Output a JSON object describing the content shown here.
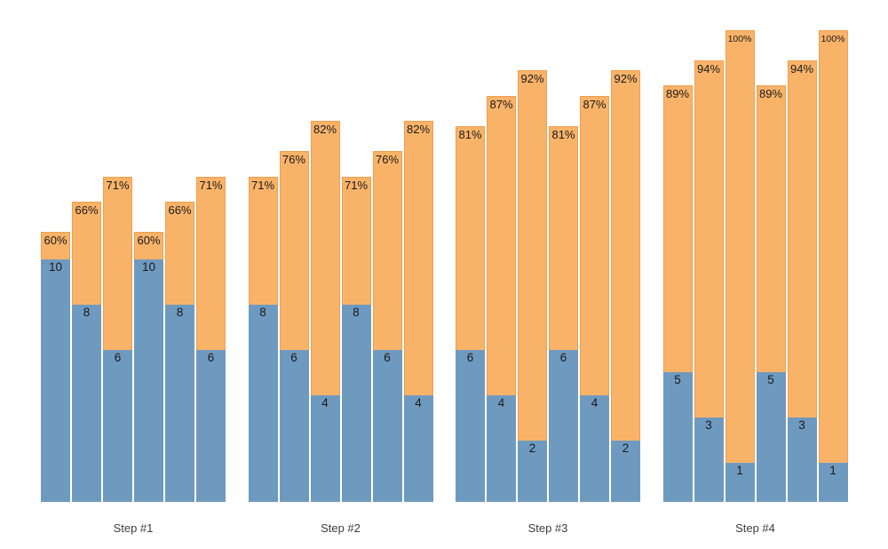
{
  "chart_data": {
    "type": "bar",
    "subtype": "stacked",
    "title": "",
    "xlabel": "",
    "ylabel": "",
    "grid": false,
    "legend": null,
    "axes_visible": false,
    "x_categories": [
      "Step #1",
      "Step #2",
      "Step #3",
      "Step #4"
    ],
    "colors": {
      "upper_segment": "#f9b369",
      "upper_segment_border": "#eda052",
      "lower_segment": "#6f9ac0",
      "value_label_text": "#1a1a1a",
      "category_label_text": "#3c3c3c",
      "background": "#ffffff"
    },
    "groups": [
      {
        "label": "Step #1",
        "bars": [
          {
            "percent": 60,
            "count": 10,
            "percent_label": "60%",
            "count_label": "10"
          },
          {
            "percent": 66,
            "count": 8,
            "percent_label": "66%",
            "count_label": "8"
          },
          {
            "percent": 71,
            "count": 6,
            "percent_label": "71%",
            "count_label": "6"
          },
          {
            "percent": 60,
            "count": 10,
            "percent_label": "60%",
            "count_label": "10"
          },
          {
            "percent": 66,
            "count": 8,
            "percent_label": "66%",
            "count_label": "8"
          },
          {
            "percent": 71,
            "count": 6,
            "percent_label": "71%",
            "count_label": "6"
          }
        ]
      },
      {
        "label": "Step #2",
        "bars": [
          {
            "percent": 71,
            "count": 8,
            "percent_label": "71%",
            "count_label": "8"
          },
          {
            "percent": 76,
            "count": 6,
            "percent_label": "76%",
            "count_label": "6"
          },
          {
            "percent": 82,
            "count": 4,
            "percent_label": "82%",
            "count_label": "4"
          },
          {
            "percent": 71,
            "count": 8,
            "percent_label": "71%",
            "count_label": "8"
          },
          {
            "percent": 76,
            "count": 6,
            "percent_label": "76%",
            "count_label": "6"
          },
          {
            "percent": 82,
            "count": 4,
            "percent_label": "82%",
            "count_label": "4"
          }
        ]
      },
      {
        "label": "Step #3",
        "bars": [
          {
            "percent": 81,
            "count": 6,
            "percent_label": "81%",
            "count_label": "6"
          },
          {
            "percent": 87,
            "count": 4,
            "percent_label": "87%",
            "count_label": "4"
          },
          {
            "percent": 92,
            "count": 2,
            "percent_label": "92%",
            "count_label": "2"
          },
          {
            "percent": 81,
            "count": 6,
            "percent_label": "81%",
            "count_label": "6"
          },
          {
            "percent": 87,
            "count": 4,
            "percent_label": "87%",
            "count_label": "4"
          },
          {
            "percent": 92,
            "count": 2,
            "percent_label": "92%",
            "count_label": "2"
          }
        ]
      },
      {
        "label": "Step #4",
        "bars": [
          {
            "percent": 89,
            "count": 5,
            "percent_label": "89%",
            "count_label": "5"
          },
          {
            "percent": 94,
            "count": 3,
            "percent_label": "94%",
            "count_label": "3"
          },
          {
            "percent": 100,
            "count": 1,
            "percent_label": "100%",
            "count_label": "1"
          },
          {
            "percent": 89,
            "count": 5,
            "percent_label": "89%",
            "count_label": "5"
          },
          {
            "percent": 94,
            "count": 3,
            "percent_label": "94%",
            "count_label": "3"
          },
          {
            "percent": 100,
            "count": 1,
            "percent_label": "100%",
            "count_label": "1"
          }
        ]
      }
    ]
  }
}
